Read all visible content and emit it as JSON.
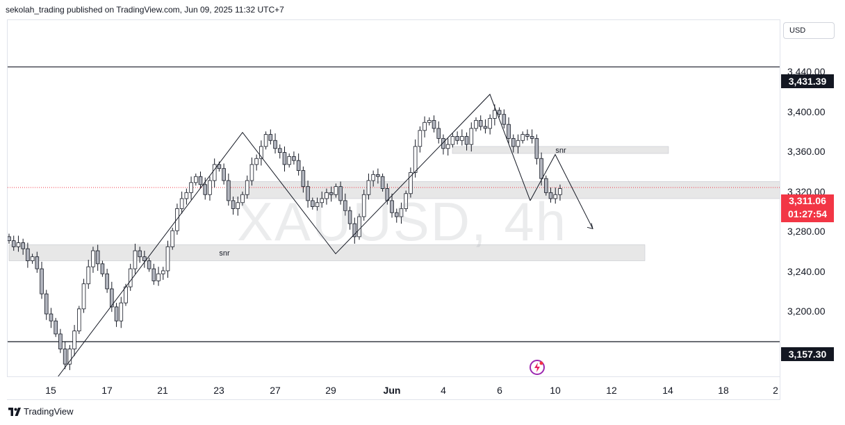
{
  "header": {
    "text": "sekolah_trading published on TradingView.com, Jun 09, 2025 11:32 UTC+7"
  },
  "watermark": "XAUUSD, 4h",
  "footer": {
    "brand": "TradingView"
  },
  "price_axis": {
    "currency": "USD",
    "labels": [
      "3,440.00",
      "3,400.00",
      "3,360.00",
      "3,320.00",
      "3,280.00",
      "3,240.00",
      "3,200.00"
    ],
    "tags": {
      "upper": "3,431.39",
      "lower": "3,157.30",
      "last_price": "3,311.06",
      "countdown": "01:27:54"
    }
  },
  "time_axis": {
    "labels": [
      "15",
      "17",
      "21",
      "23",
      "27",
      "29",
      "Jun",
      "4",
      "6",
      "10",
      "12",
      "14",
      "18",
      "2"
    ]
  },
  "chart_data": {
    "type": "candlestick",
    "symbol": "XAUUSD",
    "timeframe": "4h",
    "ylim": [
      3122,
      3478
    ],
    "grid": false,
    "colors": {
      "candle_up": "#ffffff",
      "candle_down": "#b2b5be",
      "candle_border": "#131722",
      "last_price": "#f23645",
      "zone": "#e0e0e0"
    },
    "horizontal_lines": [
      {
        "price": 3431.39,
        "label": "3,431.39"
      },
      {
        "price": 3157.3,
        "label": "3,157.30"
      }
    ],
    "zones": [
      {
        "label": "snr",
        "from": 3238,
        "to": 3254
      },
      {
        "label": "snr",
        "from": 3345,
        "to": 3352
      },
      {
        "label": "",
        "from": 3300,
        "to": 3317
      }
    ],
    "last_price": 3311.06,
    "closes": [
      3258,
      3252,
      3256,
      3250,
      3238,
      3242,
      3230,
      3205,
      3185,
      3178,
      3165,
      3150,
      3135,
      3150,
      3168,
      3190,
      3215,
      3232,
      3248,
      3235,
      3225,
      3210,
      3192,
      3178,
      3196,
      3212,
      3230,
      3248,
      3242,
      3238,
      3230,
      3218,
      3225,
      3228,
      3252,
      3268,
      3290,
      3300,
      3306,
      3316,
      3322,
      3314,
      3304,
      3318,
      3334,
      3330,
      3318,
      3298,
      3290,
      3296,
      3304,
      3318,
      3334,
      3340,
      3352,
      3364,
      3358,
      3350,
      3346,
      3334,
      3342,
      3338,
      3328,
      3312,
      3298,
      3292,
      3296,
      3300,
      3306,
      3304,
      3312,
      3298,
      3288,
      3275,
      3262,
      3282,
      3304,
      3318,
      3324,
      3322,
      3310,
      3298,
      3286,
      3282,
      3290,
      3305,
      3326,
      3352,
      3368,
      3376,
      3378,
      3370,
      3360,
      3350,
      3354,
      3362,
      3358,
      3362,
      3354,
      3370,
      3378,
      3372,
      3370,
      3380,
      3388,
      3384,
      3374,
      3360,
      3352,
      3358,
      3364,
      3362,
      3360,
      3340,
      3320,
      3306,
      3300,
      3304,
      3310
    ],
    "annotations": [
      {
        "type": "zigzag",
        "points": [
          3122,
          3366,
          3245,
          3404,
          3298
        ]
      },
      {
        "type": "projection",
        "points": [
          3298,
          3344,
          3270
        ]
      }
    ]
  }
}
